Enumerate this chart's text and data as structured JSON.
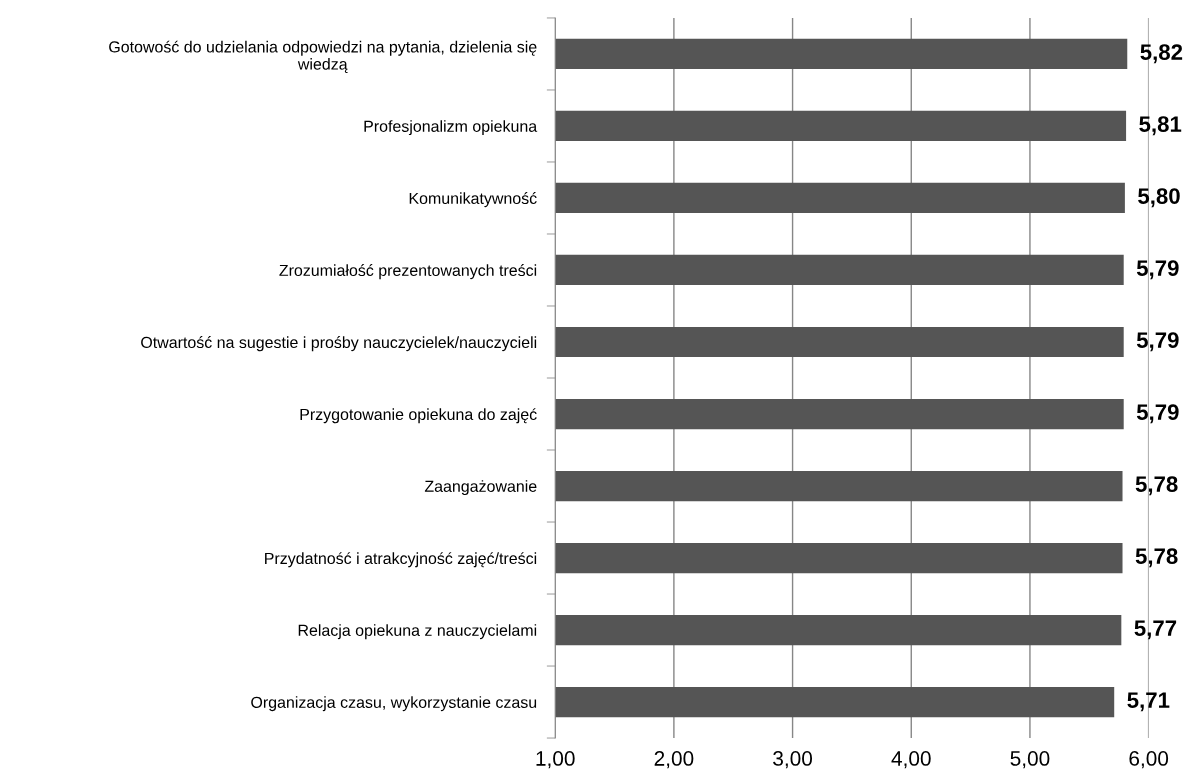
{
  "chart_data": {
    "type": "bar",
    "orientation": "horizontal",
    "categories": [
      "Gotowość do udzielania odpowiedzi na pytania, dzielenia się\nwiedzą",
      "Profesjonalizm opiekuna",
      "Komunikatywność",
      "Zrozumiałość prezentowanych treści",
      "Otwartość na sugestie i prośby nauczycielek/nauczycieli",
      "Przygotowanie opiekuna do zajęć",
      "Zaangażowanie",
      "Przydatność i atrakcyjność zajęć/treści",
      "Relacja opiekuna z nauczycielami",
      "Organizacja czasu, wykorzystanie czasu"
    ],
    "values": [
      5.82,
      5.81,
      5.8,
      5.79,
      5.79,
      5.79,
      5.78,
      5.78,
      5.77,
      5.71
    ],
    "value_labels": [
      "5,82",
      "5,81",
      "5,80",
      "5,79",
      "5,79",
      "5,79",
      "5,78",
      "5,78",
      "5,77",
      "5,71"
    ],
    "color": "#555555",
    "xlim": [
      1,
      6
    ],
    "xticks": [
      {
        "value": 1,
        "label": "1,00"
      },
      {
        "value": 2,
        "label": "2,00"
      },
      {
        "value": 3,
        "label": "3,00"
      },
      {
        "value": 4,
        "label": "4,00"
      },
      {
        "value": 5,
        "label": "5,00"
      },
      {
        "value": 6,
        "label": "6,00"
      }
    ],
    "grid": "x"
  }
}
